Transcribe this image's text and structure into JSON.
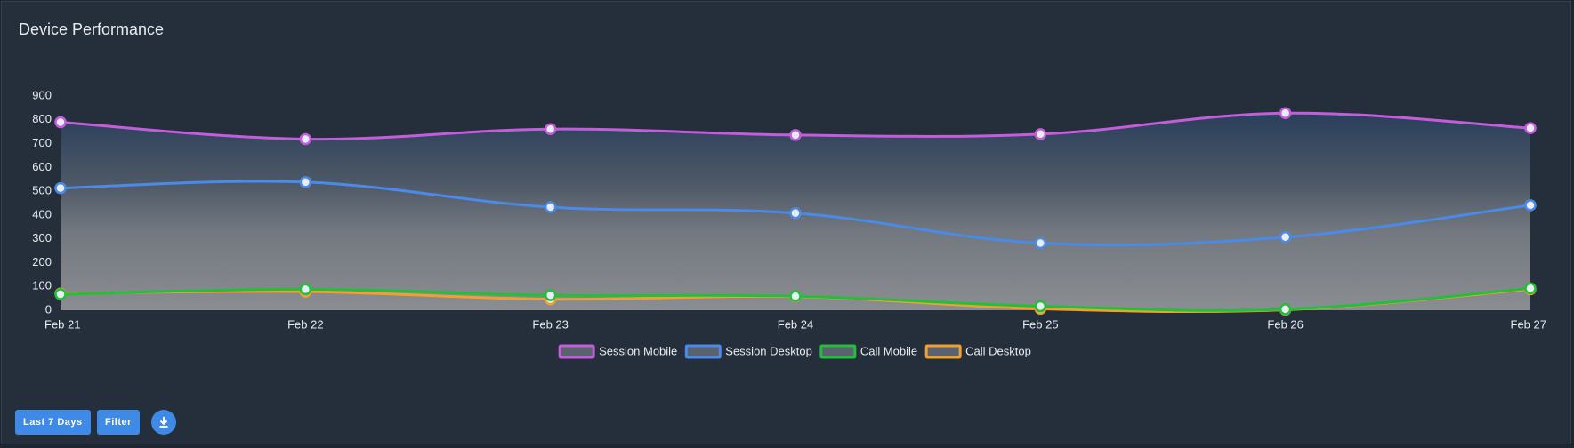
{
  "title": "Device Performance",
  "chart_data": {
    "type": "line",
    "categories": [
      "Feb 21",
      "Feb 22",
      "Feb 23",
      "Feb 24",
      "Feb 25",
      "Feb 26",
      "Feb 27"
    ],
    "series": [
      {
        "name": "Session Mobile",
        "color": "#c35ddb",
        "values": [
          790,
          719,
          761,
          736,
          740,
          828,
          765
        ]
      },
      {
        "name": "Session Desktop",
        "color": "#4a8ae8",
        "values": [
          513,
          538,
          433,
          408,
          282,
          307,
          441
        ]
      },
      {
        "name": "Call Mobile",
        "color": "#22c03a",
        "values": [
          67,
          88,
          63,
          59,
          17,
          4,
          92
        ]
      },
      {
        "name": "Call Desktop",
        "color": "#f0a030",
        "values": [
          70,
          78,
          46,
          57,
          6,
          2,
          88
        ]
      }
    ],
    "ylim": [
      0,
      900
    ],
    "yticks": [
      0,
      100,
      200,
      300,
      400,
      500,
      600,
      700,
      800,
      900
    ],
    "grid": false,
    "legend": "bottom"
  },
  "buttons": [
    "Last 7 Days",
    "Filter"
  ]
}
